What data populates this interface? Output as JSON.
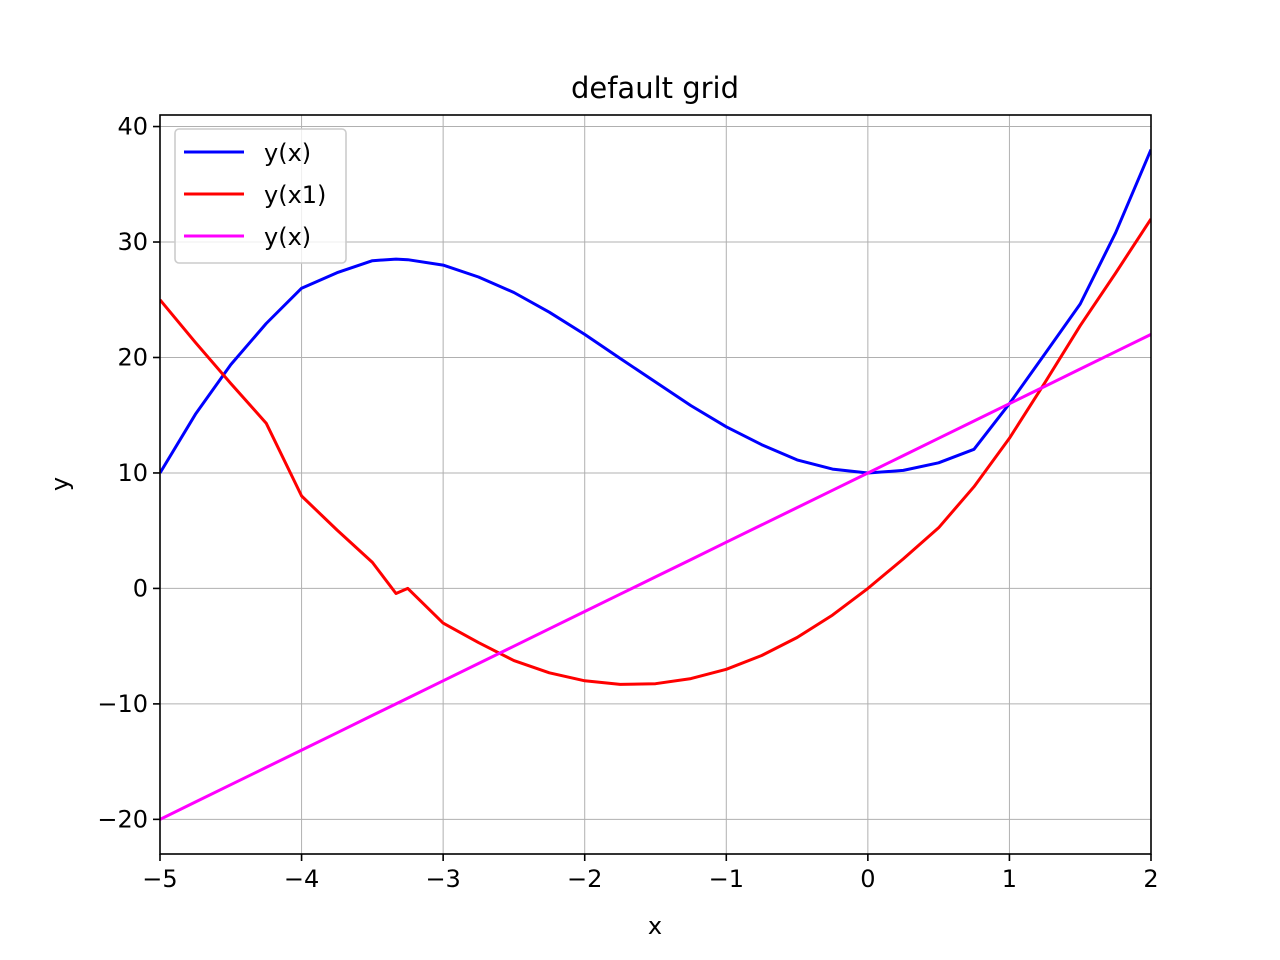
{
  "chart_data": {
    "type": "line",
    "title": "default grid",
    "xlabel": "x",
    "ylabel": "y",
    "xlim": [
      -5,
      2
    ],
    "ylim": [
      -23,
      41
    ],
    "grid": true,
    "legend_placement": "upper-left",
    "x_ticks": [
      -5,
      -4,
      -3,
      -2,
      -1,
      0,
      1,
      2
    ],
    "x_tick_labels": [
      "−5",
      "−4",
      "−3",
      "−2",
      "−1",
      "0",
      "1",
      "2"
    ],
    "y_ticks": [
      -20,
      -10,
      0,
      10,
      20,
      30,
      40
    ],
    "y_tick_labels": [
      "−20",
      "−10",
      "0",
      "10",
      "20",
      "30",
      "40"
    ],
    "x": [
      -5,
      -4.75,
      -4.5,
      -4.25,
      -4,
      -3.75,
      -3.5,
      -3.333,
      -3.25,
      -3,
      -2.75,
      -2.5,
      -2.25,
      -2,
      -1.75,
      -1.5,
      -1.25,
      -1,
      -0.75,
      -0.5,
      -0.25,
      0,
      0.25,
      0.5,
      0.75,
      1,
      1.25,
      1.5,
      1.75,
      2
    ],
    "series": [
      {
        "name": "y(x)",
        "color": "#0000ff",
        "values": [
          10,
          15.08,
          19.38,
          22.94,
          26,
          27.34,
          28.38,
          28.52,
          28.47,
          28,
          26.97,
          25.63,
          23.92,
          22,
          19.92,
          17.88,
          15.83,
          14,
          12.45,
          11.13,
          10.33,
          10,
          10.22,
          10.88,
          12.05,
          16,
          20.3,
          24.63,
          30.8,
          38
        ]
      },
      {
        "name": "y(x1)",
        "color": "#ff0000",
        "values": [
          25,
          21.31,
          17.75,
          14.31,
          8,
          5.06,
          2.25,
          -0.44,
          0,
          -3,
          -4.69,
          -6.25,
          -7.31,
          -8,
          -8.31,
          -8.25,
          -7.81,
          -7,
          -5.81,
          -4.25,
          -2.31,
          0,
          2.56,
          5.25,
          8.81,
          13,
          17.81,
          22.75,
          27.31,
          32
        ]
      },
      {
        "name": "y(x)",
        "color": "#ff00ff",
        "values": [
          -20,
          -18.5,
          -17,
          -15.5,
          -14,
          -12.5,
          -11,
          -10,
          -9.5,
          -8,
          -6.5,
          -5,
          -3.5,
          -2,
          -0.5,
          1,
          2.5,
          4,
          5.5,
          7,
          8.5,
          10,
          11.5,
          13,
          14.5,
          16,
          17.5,
          19,
          20.5,
          22
        ]
      }
    ]
  }
}
